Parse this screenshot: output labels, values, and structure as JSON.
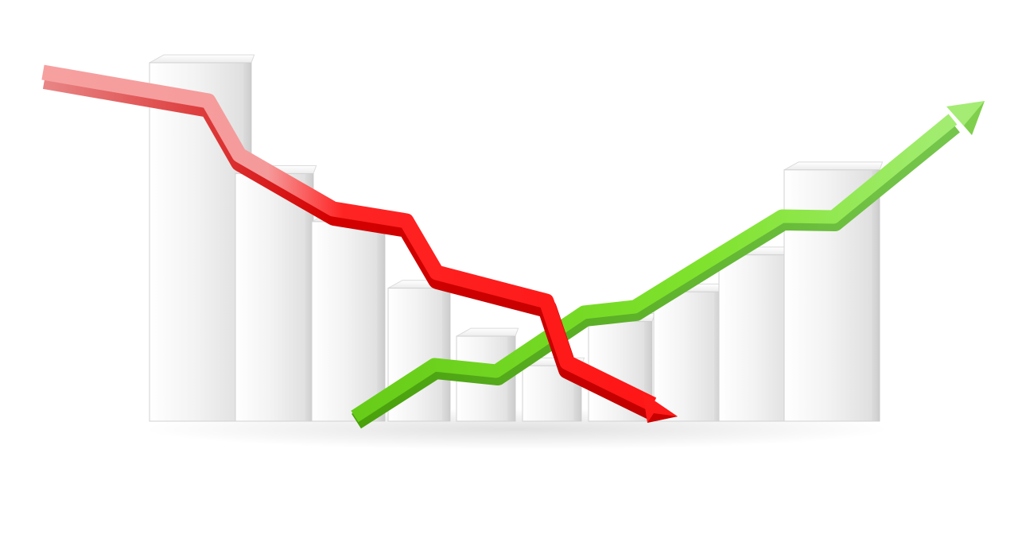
{
  "scene": {
    "background": "#ffffff",
    "bars": [
      {
        "name": "bar-1",
        "level": 0.97
      },
      {
        "name": "bar-2",
        "level": 0.67
      },
      {
        "name": "bar-3",
        "level": 0.54
      },
      {
        "name": "bar-4",
        "level": 0.36
      },
      {
        "name": "bar-5",
        "level": 0.23
      },
      {
        "name": "bar-6",
        "level": 0.15
      },
      {
        "name": "bar-7",
        "level": 0.27
      },
      {
        "name": "bar-8",
        "level": 0.35
      },
      {
        "name": "bar-9",
        "level": 0.45
      },
      {
        "name": "bar-10",
        "level": 0.68
      }
    ],
    "arrows": [
      {
        "name": "downtrend-arrow",
        "direction": "down",
        "colors": [
          "#f7a0a0",
          "#ff1e1e"
        ]
      },
      {
        "name": "uptrend-arrow",
        "direction": "up",
        "colors": [
          "#6fd21e",
          "#a6ec7a"
        ]
      }
    ],
    "bar_color": "#f0f0f0"
  }
}
